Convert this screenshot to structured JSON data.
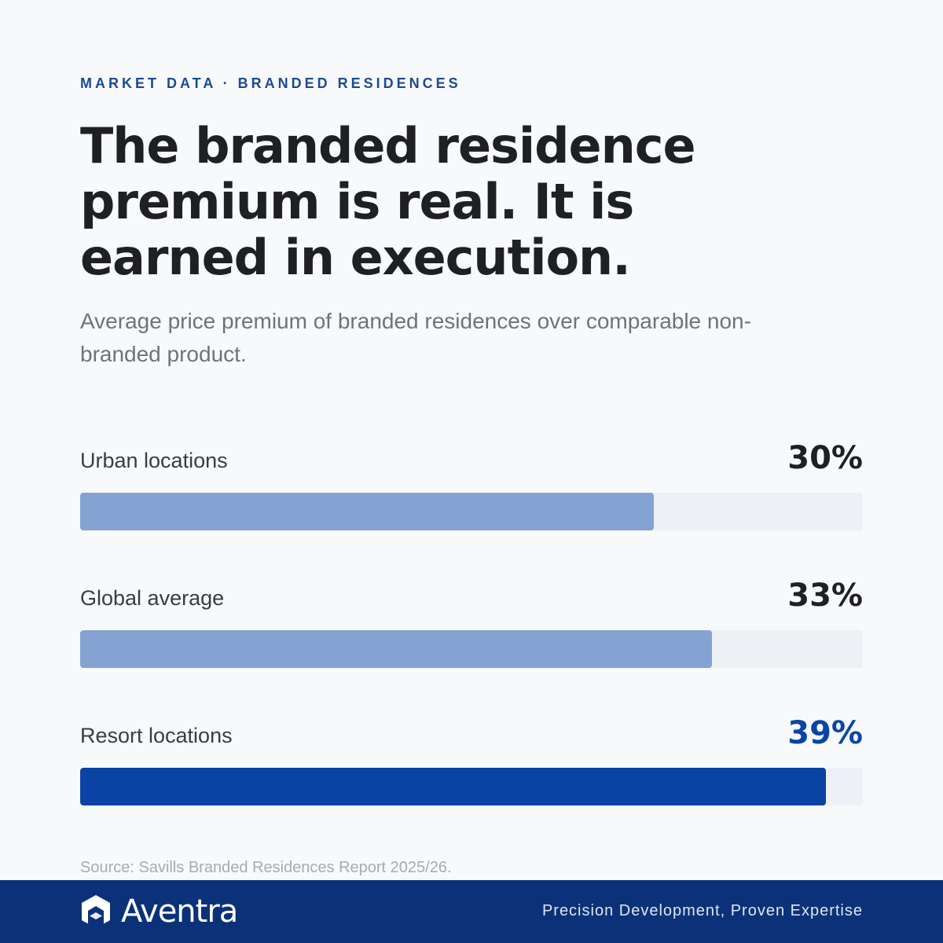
{
  "eyebrow": "MARKET DATA · BRANDED RESIDENCES",
  "chart_data": {
    "type": "bar",
    "orientation": "horizontal",
    "title": "The branded residence premium is real. It is earned in execution.",
    "subtitle": "Average price premium of branded residences over comparable non-branded product.",
    "categories": [
      "Urban locations",
      "Global average",
      "Resort locations"
    ],
    "values": [
      30,
      33,
      39
    ],
    "value_labels": [
      "30%",
      "33%",
      "39%"
    ],
    "highlight_index": 2,
    "xlim": [
      0,
      40
    ],
    "grid": false,
    "legend": "none"
  },
  "source": "Source: Savills Branded Residences Report 2025/26.",
  "footer": {
    "brand": "Aventra",
    "tagline": "Precision Development, Proven Expertise"
  },
  "colors": {
    "accent": "#0a43a3",
    "bar": "#84a3d3",
    "track": "#edf0f5",
    "footer_bg": "#0b3278"
  }
}
